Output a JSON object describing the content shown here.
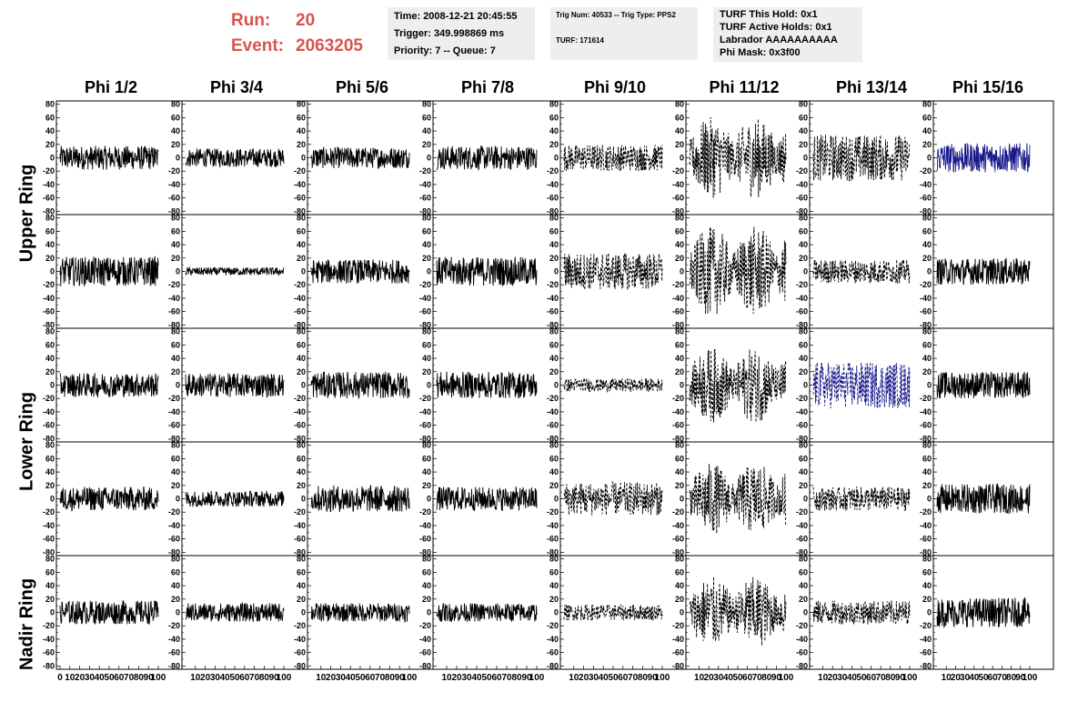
{
  "header": {
    "run_label": "Run:",
    "run_value": "20",
    "event_label": "Event:",
    "event_value": "2063205"
  },
  "info_box_1": {
    "time": "Time: 2008-12-21 20:45:55",
    "trigger": "Trigger: 349.998869 ms",
    "priority": "Priority: 7 -- Queue: 7"
  },
  "info_box_2": {
    "trig": "Trig Num: 40533 -- Trig Type: PPS2",
    "turf": "TURF: 171614"
  },
  "info_box_3": {
    "this_hold": "TURF This Hold: 0x1",
    "active_holds": "TURF Active Holds: 0x1",
    "labrador": "Labrador AAAAAAAAAA",
    "phi_mask": "Phi Mask: 0x3f00"
  },
  "columns": [
    "Phi 1/2",
    "Phi 3/4",
    "Phi 5/6",
    "Phi 7/8",
    "Phi 9/10",
    "Phi 11/12",
    "Phi 13/14",
    "Phi 15/16"
  ],
  "row_labels": {
    "upper": "Upper Ring",
    "lower": "Lower Ring",
    "nadir": "Nadir Ring"
  },
  "colors": {
    "header_red": "#d9534f",
    "info_bg": "#eeeeee",
    "trace_black": "#000000",
    "trace_blue": "#1a1a8c"
  },
  "chart_data": {
    "type": "line",
    "grid": false,
    "ylim": [
      -85,
      85
    ],
    "xlim": [
      0,
      100
    ],
    "y_ticks": [
      80,
      60,
      40,
      20,
      0,
      -20,
      -40,
      -60,
      -80
    ],
    "x_ticks_first": [
      "0",
      "10",
      "20",
      "30",
      "40",
      "50",
      "60",
      "70",
      "80",
      "90",
      "100"
    ],
    "x_ticks_other": [
      "10",
      "20",
      "30",
      "40",
      "50",
      "60",
      "70",
      "80",
      "90",
      "100"
    ],
    "panel_rows": 5,
    "panel_cols": 8,
    "panels_style": [
      [
        "solid",
        "solid",
        "solid",
        "solid",
        "dashed",
        "dashed",
        "dashed",
        "solid"
      ],
      [
        "solid",
        "solid",
        "solid",
        "solid",
        "dashed",
        "dashed",
        "dashed",
        "solid"
      ],
      [
        "solid",
        "solid",
        "solid",
        "solid",
        "dashed",
        "dashed",
        "dashed",
        "solid"
      ],
      [
        "solid",
        "solid",
        "solid",
        "solid",
        "dashed",
        "dashed",
        "dashed",
        "solid"
      ],
      [
        "solid",
        "solid",
        "solid",
        "solid",
        "dashed",
        "dashed",
        "dashed",
        "solid"
      ]
    ],
    "panels_amplitude": [
      [
        18,
        14,
        16,
        18,
        20,
        45,
        35,
        22
      ],
      [
        22,
        6,
        18,
        22,
        28,
        50,
        18,
        20
      ],
      [
        18,
        18,
        20,
        20,
        10,
        42,
        35,
        20
      ],
      [
        18,
        12,
        20,
        18,
        25,
        40,
        18,
        22
      ],
      [
        18,
        14,
        14,
        14,
        12,
        40,
        18,
        22
      ]
    ],
    "panels_color": [
      [
        "black",
        "black",
        "black",
        "black",
        "black",
        "black",
        "black",
        "blue"
      ],
      [
        "black",
        "black",
        "black",
        "black",
        "black",
        "black",
        "black",
        "black"
      ],
      [
        "black",
        "black",
        "black",
        "black",
        "black",
        "black",
        "blue",
        "black"
      ],
      [
        "black",
        "black",
        "black",
        "black",
        "black",
        "black",
        "black",
        "black"
      ],
      [
        "black",
        "black",
        "black",
        "black",
        "black",
        "black",
        "black",
        "black"
      ]
    ]
  }
}
